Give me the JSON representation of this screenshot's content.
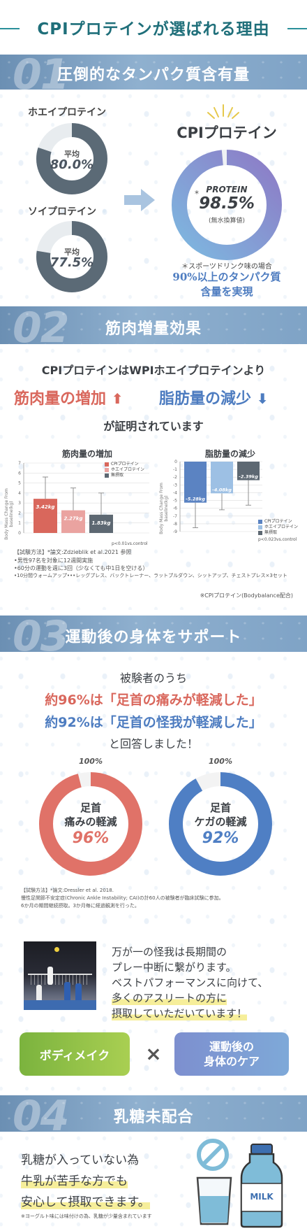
{
  "header": {
    "title": "CPIプロテインが選ばれる理由"
  },
  "s1": {
    "num": "01",
    "title": "圧倒的なタンパク質含有量",
    "whey_label": "ホエイプロテイン",
    "whey_avg": "平均",
    "whey_value": "80.0%",
    "soy_label": "ソイプロテイン",
    "soy_avg": "平均",
    "soy_value": "77.5%",
    "cpi_label": "CPIプロテイン",
    "cpi_protein": "PROTEIN",
    "cpi_value": "98.5%",
    "cpi_sub": "(無水換算値)",
    "cpi_star": "*",
    "note1": "＊スポーツドリンク味の場合",
    "note2": "90%以上のタンパク質",
    "note3": "含量を実現",
    "whey_pct": 80.0,
    "soy_pct": 77.5,
    "cpi_pct": 98.5
  },
  "s2": {
    "num": "02",
    "title": "筋肉増量効果",
    "lead": "CPIプロテインはWPIホエイプロテインより",
    "gain": "筋肉量の増加",
    "loss": "脂肪量の減少",
    "proven": "が証明されています",
    "muscle_chart": {
      "title": "筋肉量の増加",
      "ylabel": "Body Mass Change From baseline(kg)",
      "yticks": [
        "7",
        "6",
        "5",
        "4",
        "3",
        "2",
        "1",
        "0"
      ],
      "legend": [
        "CPIプロテイン",
        "ホエイプロテイン",
        "無摂取"
      ],
      "labels": [
        "3.42kg",
        "2.27kg",
        "1.83kg"
      ],
      "pnote": "p<0.01vs.control"
    },
    "fat_chart": {
      "title": "脂肪量の減少",
      "ylabel": "Body Mass Change From baseline(kg)",
      "yticks": [
        "0",
        "-1",
        "-2",
        "-3",
        "-4",
        "-5",
        "-6",
        "-7",
        "-8",
        "-9"
      ],
      "legend": [
        "CPIプロテイン",
        "ホエイプロテイン",
        "無摂取"
      ],
      "labels": [
        "-5.28kg",
        "-4.08kg",
        "-2.39kg"
      ],
      "pnote": "p<0.023vs.control"
    },
    "method1": "【試験方法】*論文:Zdzieblik et al.2021 参照",
    "method2": "•男性97名を対象に12週間実施",
    "method3": "•60分の運動を週に3回（少なくても中1日を空ける）",
    "method4": "•10分間ウォームアップ•••レッグプレス、バックトレーナー、ラットプルダウン、シットアップ、チェストプレス×3セット",
    "credit": "※CPIプロテイン(Bodybalance配合)"
  },
  "chart_data": [
    {
      "type": "bar",
      "title": "筋肉量の増加",
      "ylabel": "Body Mass Change From baseline(kg)",
      "categories": [
        "CPIプロテイン",
        "ホエイプロテイン",
        "無摂取"
      ],
      "values": [
        3.42,
        2.27,
        1.83
      ],
      "error_upper": [
        5.6,
        4.5,
        4.0
      ],
      "ylim": [
        0,
        7
      ],
      "colors": [
        "#d9675c",
        "#eaa3a0",
        "#5d6872"
      ]
    },
    {
      "type": "bar",
      "title": "脂肪量の減少",
      "ylabel": "Body Mass Change From baseline(kg)",
      "categories": [
        "CPIプロテイン",
        "ホエイプロテイン",
        "無摂取"
      ],
      "values": [
        -5.28,
        -4.08,
        -2.39
      ],
      "error_lower": [
        -8.5,
        -6.2,
        -5.6
      ],
      "ylim": [
        -9,
        0
      ],
      "colors": [
        "#5b83c2",
        "#9dc0e4",
        "#5d6872"
      ]
    }
  ],
  "s3": {
    "num": "03",
    "title": "運動後の身体をサポート",
    "lead": "被験者のうち",
    "line1": "約96%は「足首の痛みが軽減した」",
    "line2": "約92%は「足首の怪我が軽減した」",
    "answer": "と回答しました！",
    "d1_top": "100%",
    "d1_l1": "足首",
    "d1_l2": "痛みの軽減",
    "d1_value": "96%",
    "d1_pct": 96,
    "d2_top": "100%",
    "d2_l1": "足首",
    "d2_l2": "ケガの軽減",
    "d2_value": "92%",
    "d2_pct": 92,
    "method1": "【試験方法】*論文:Dressler et al. 2018.",
    "method2": "慢性足関節不安定症(Chronic Ankle Instability; CAI)の計60人の被験者が臨床試験に参加。",
    "method3": "6か月の期間継続摂取。3か月毎に経過観測を行った。",
    "copy1": "万が一の怪我は長期間の",
    "copy2": "プレー中断に繋がります。",
    "copy3": "ベストパフォーマンスに向けて、",
    "copy4": "多くのアスリートの方に",
    "copy5": "摂取していただいています！",
    "btn1": "ボディメイク",
    "times": "×",
    "btn2a": "運動後の",
    "btn2b": "身体のケア"
  },
  "s4": {
    "num": "04",
    "title": "乳糖未配合",
    "l1": "乳糖が入っていない為",
    "l2": "牛乳が苦手な方でも",
    "l3": "安心して摂取できます。",
    "note": "※ヨーグルト味には味付けの為、乳糖が少量含まれています",
    "milk": "MILK"
  }
}
